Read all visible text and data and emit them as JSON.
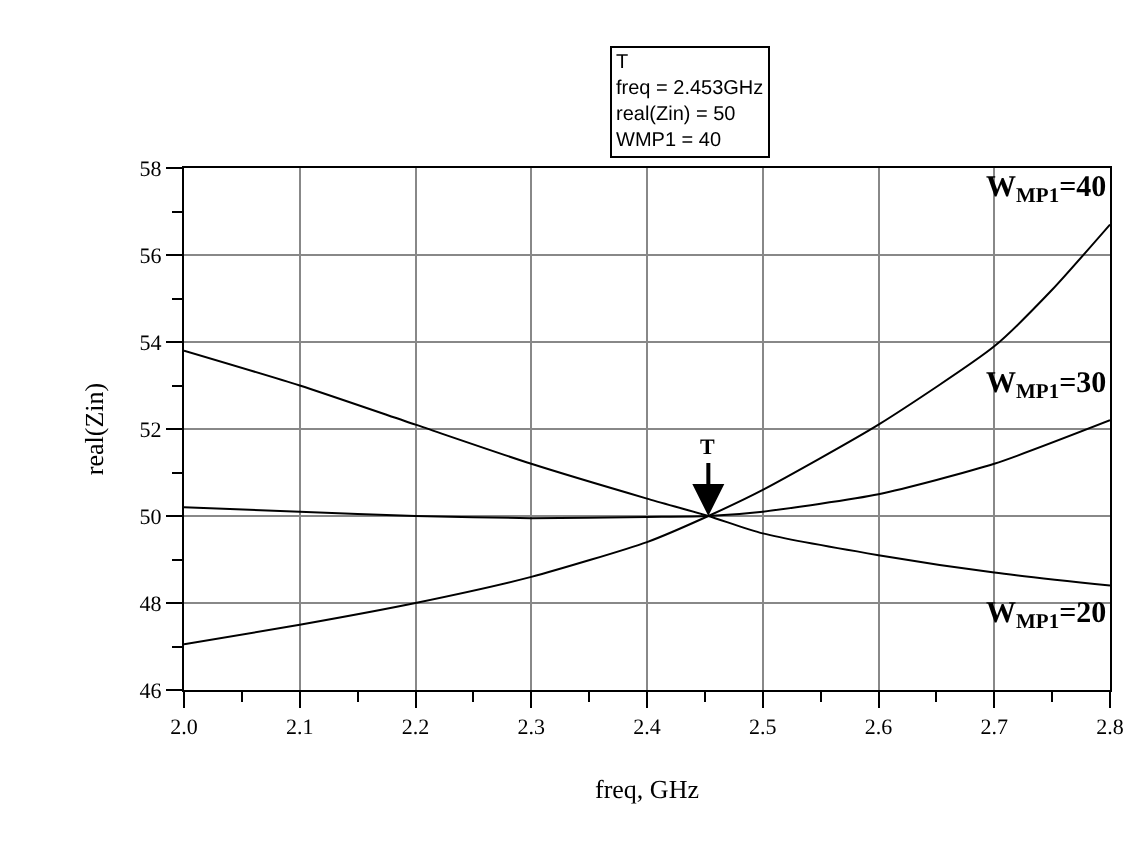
{
  "chart_data": {
    "type": "line",
    "xlabel": "freq, GHz",
    "ylabel": "real(Zin)",
    "xlim": [
      2.0,
      2.8
    ],
    "xticks": [
      {
        "value": 2.0,
        "label": "2.0"
      },
      2.1,
      2.2,
      2.3,
      2.4,
      2.5,
      2.6,
      2.7,
      2.8
    ],
    "ylim": [
      46,
      58
    ],
    "yticks": [
      46,
      48,
      50,
      52,
      54,
      56,
      58
    ],
    "grid": true,
    "legend": false,
    "marker": "none",
    "line_style": "solid",
    "series": [
      {
        "name": "W$_{MP1}$=20",
        "color": "#000000",
        "x": [
          2.0,
          2.1,
          2.2,
          2.3,
          2.4,
          2.453,
          2.5,
          2.6,
          2.7,
          2.8
        ],
        "values": [
          53.8,
          53.0,
          52.1,
          51.2,
          50.4,
          50.0,
          49.6,
          49.1,
          48.7,
          48.4
        ]
      },
      {
        "name": "W$_{MP1}$=30",
        "color": "#000000",
        "x": [
          2.0,
          2.1,
          2.2,
          2.3,
          2.4,
          2.453,
          2.5,
          2.6,
          2.7,
          2.8
        ],
        "values": [
          50.2,
          50.1,
          50.0,
          49.95,
          49.98,
          50.0,
          50.1,
          50.5,
          51.2,
          52.2
        ]
      },
      {
        "name": "W$_{MP1}$=40",
        "color": "#000000",
        "x": [
          2.0,
          2.1,
          2.2,
          2.3,
          2.4,
          2.453,
          2.5,
          2.6,
          2.7,
          2.75,
          2.8
        ],
        "values": [
          47.05,
          47.5,
          48.0,
          48.6,
          49.4,
          50.0,
          50.6,
          52.1,
          53.9,
          55.2,
          56.7
        ]
      }
    ],
    "annotations": [
      {
        "text": "T",
        "x": 2.453,
        "y": 50
      },
      "T\nfreq = 2.453GHz\nreal(Zin) = 50\nWMP1 = 40"
    ]
  }
}
